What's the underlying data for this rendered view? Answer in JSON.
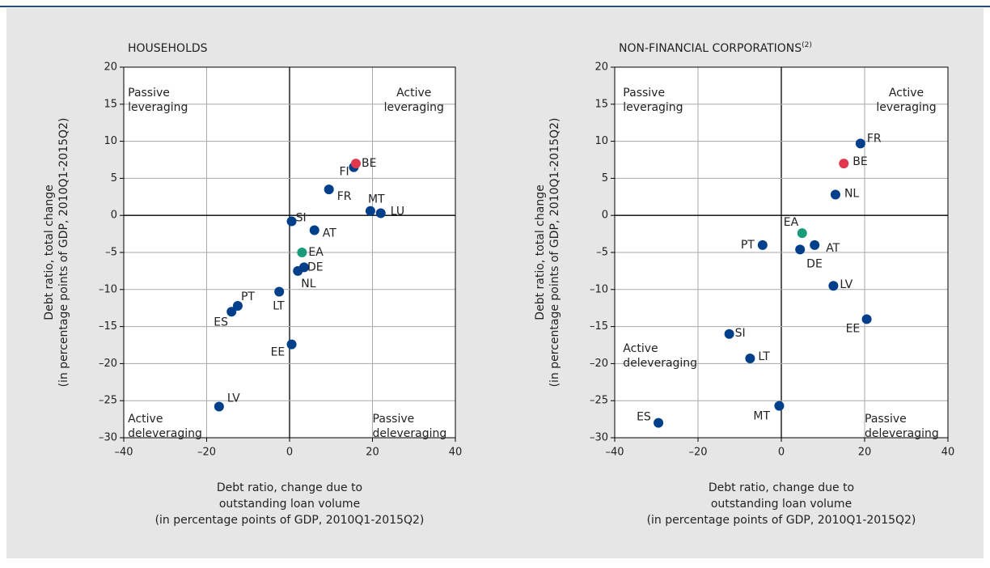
{
  "chart_data": [
    {
      "type": "scatter",
      "title": "HOUSEHOLDS",
      "x_label": [
        "Debt ratio, change due to",
        "outstanding loan volume",
        "(in percentage points of GDP, 2010Q1-2015Q2)"
      ],
      "y_label": [
        "Debt ratio, total change",
        "(in percentage points of GDP, 2010Q1-2015Q2)"
      ],
      "quadrant_labels": [
        [
          "Passive",
          "leveraging"
        ],
        [
          "Active",
          "leveraging"
        ],
        [
          "Active",
          "deleveraging"
        ],
        [
          "Passive",
          "deleveraging"
        ]
      ],
      "labels": [
        "SI",
        "AT",
        "EA",
        "DE",
        "NL",
        "LT",
        "PT",
        "ES",
        "EE",
        "LV",
        "FI",
        "BE",
        "FR",
        "MT",
        "LU"
      ],
      "x": [
        0.5,
        6,
        3,
        3.5,
        2,
        -2.5,
        -12.5,
        -14,
        0.5,
        -17,
        15.5,
        16,
        9.5,
        19.5,
        22
      ],
      "values": [
        -0.8,
        -2,
        -5,
        -7,
        -7.5,
        -10.3,
        -12.2,
        -13,
        -17.4,
        -25.8,
        6.5,
        7,
        3.5,
        0.6,
        0.3
      ],
      "colors": [
        "#003f8a",
        "#003f8a",
        "#1a9b7a",
        "#003f8a",
        "#003f8a",
        "#003f8a",
        "#003f8a",
        "#003f8a",
        "#003f8a",
        "#003f8a",
        "#003f8a",
        "#e0384f",
        "#003f8a",
        "#003f8a",
        "#003f8a"
      ],
      "xlim": [
        -40,
        40
      ],
      "ylim": [
        -30,
        20
      ],
      "xticks": [
        {
          "value": -40,
          "label": "–40"
        },
        {
          "value": -20,
          "label": "–20"
        },
        0,
        20,
        40
      ],
      "yticks": [
        20,
        15,
        10,
        5,
        0,
        {
          "value": -5,
          "label": "–5"
        },
        {
          "value": -10,
          "label": "–10"
        },
        {
          "value": -15,
          "label": "–15"
        },
        {
          "value": -20,
          "label": "–20"
        },
        {
          "value": -25,
          "label": "–25"
        },
        {
          "value": -30,
          "label": "–30"
        }
      ],
      "grid": true
    },
    {
      "type": "scatter",
      "title": "NON-FINANCIAL CORPORATIONS",
      "title_note": "(2)",
      "x_label": [
        "Debt ratio, change due to",
        "outstanding loan volume",
        "(in percentage points of GDP, 2010Q1-2015Q2)"
      ],
      "y_label": [
        "Debt ratio, total change",
        "(in percentage points of GDP, 2010Q1-2015Q2)"
      ],
      "quadrant_labels": [
        [
          "Passive",
          "leveraging"
        ],
        [
          "Active",
          "leveraging"
        ],
        [
          "Active",
          "deleveraging"
        ],
        [
          "Passive",
          "deleveraging"
        ]
      ],
      "labels": [
        "FR",
        "BE",
        "NL",
        "EA",
        "PT",
        "AT",
        "DE",
        "LV",
        "EE",
        "SI",
        "LT",
        "MT",
        "ES"
      ],
      "x": [
        19,
        15,
        13,
        5,
        -4.5,
        8,
        4.5,
        12.5,
        20.5,
        -12.5,
        -7.5,
        -0.5,
        -29.5
      ],
      "values": [
        9.7,
        7,
        2.8,
        -2.4,
        -4,
        -4,
        -4.6,
        -9.5,
        -14,
        -16,
        -19.3,
        -25.7,
        -28
      ],
      "colors": [
        "#003f8a",
        "#e0384f",
        "#003f8a",
        "#1a9b7a",
        "#003f8a",
        "#003f8a",
        "#003f8a",
        "#003f8a",
        "#003f8a",
        "#003f8a",
        "#003f8a",
        "#003f8a",
        "#003f8a"
      ],
      "xlim": [
        -40,
        40
      ],
      "ylim": [
        -30,
        20
      ],
      "xticks": [
        {
          "value": -40,
          "label": "–40"
        },
        {
          "value": -20,
          "label": "–20"
        },
        0,
        20,
        40
      ],
      "yticks": [
        20,
        15,
        10,
        5,
        0,
        {
          "value": -5,
          "label": "–5"
        },
        {
          "value": -10,
          "label": "–10"
        },
        {
          "value": -15,
          "label": "–15"
        },
        {
          "value": -20,
          "label": "–20"
        },
        {
          "value": -25,
          "label": "–25"
        },
        {
          "value": -30,
          "label": "–30"
        }
      ],
      "grid": true
    }
  ]
}
